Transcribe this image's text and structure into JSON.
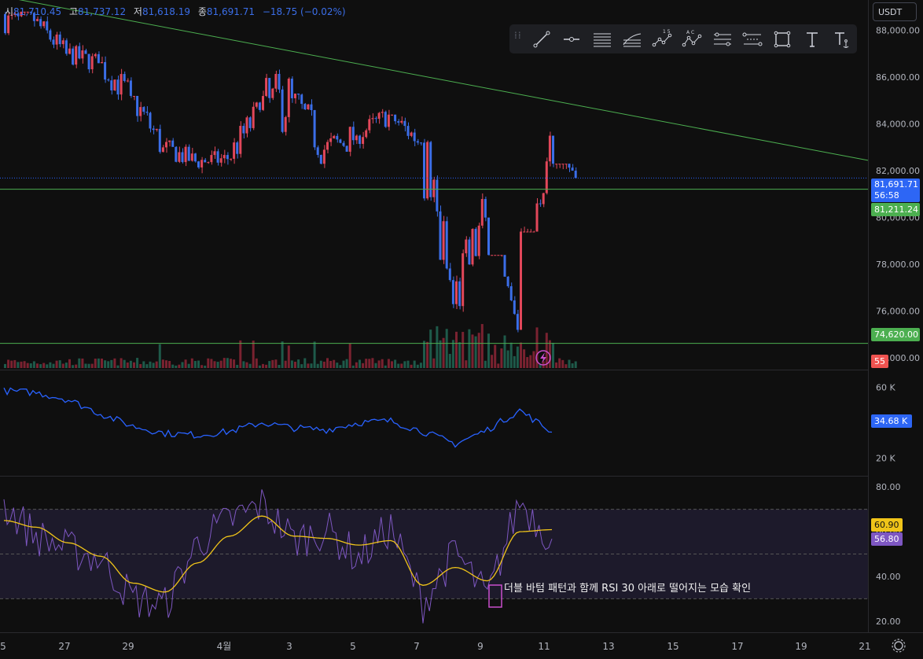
{
  "ohlc": {
    "open_label": "시",
    "open": "81,710.45",
    "high_label": "고",
    "high": "81,737.12",
    "low_label": "저",
    "low": "81,618.19",
    "close_label": "종",
    "close": "81,691.71",
    "change": "−18.75 (−0.02%)"
  },
  "currency": "USDT",
  "toolbar": {
    "tools": [
      "trend-line-icon",
      "horizontal-ray-icon",
      "parallel-channel-icon",
      "fib-retracement-icon",
      "elliott-wave-icon",
      "abcd-pattern-icon",
      "date-range-icon",
      "price-range-icon",
      "rectangle-icon",
      "text-icon",
      "anchored-text-icon"
    ],
    "elliott_label": "1 5",
    "abcd_label": "A C"
  },
  "price_axis": {
    "ticks": [
      "88,000.00",
      "86,000.00",
      "84,000.00",
      "82,000.00",
      "80,000.00",
      "78,000.00",
      "76,000.00",
      "74,000.00"
    ],
    "current_price": "81,691.71",
    "countdown": "56:58",
    "level_upper": "81,211.24",
    "level_lower": "74,620.00",
    "volume_badge": "55"
  },
  "obv_axis": {
    "ticks": [
      "60 K",
      "40 K",
      "20 K"
    ],
    "current": "34.68 K"
  },
  "rsi_axis": {
    "ticks": [
      "80.00",
      "60.00",
      "40.00",
      "20.00"
    ],
    "ma_value": "60.90",
    "rsi_value": "56.80"
  },
  "time_axis": {
    "ticks": [
      "5",
      "27",
      "29",
      "4월",
      "3",
      "5",
      "7",
      "9",
      "11",
      "13",
      "15",
      "17",
      "19",
      "21"
    ]
  },
  "annotation": "더블 바텀 패턴과 함께 RSI 30 아래로 떨어지는 모습 확인",
  "colors": {
    "background": "#0f0f0f",
    "up": "#e2475a",
    "down": "#3b6ee8",
    "trendline": "#4caf50",
    "obv": "#2962ff",
    "rsi": "#7e57c2",
    "rsi_ma": "#f0c419",
    "rsi_band": "#1d1a2b"
  },
  "chart_data": [
    {
      "type": "candlestick",
      "title": "",
      "y_unit": "USDT",
      "ylim": [
        73500,
        89300
      ],
      "x": [
        "3/25",
        "3/26",
        "3/27",
        "3/28",
        "3/29",
        "3/30",
        "3/31",
        "4/1",
        "4/2",
        "4/3",
        "4/4",
        "4/5",
        "4/6",
        "4/7",
        "4/8",
        "4/9",
        "4/10",
        "4/11"
      ],
      "close": [
        88400,
        87000,
        86600,
        85200,
        83000,
        82400,
        82500,
        84600,
        85100,
        82900,
        83500,
        84400,
        83200,
        76300,
        80000,
        75200,
        83500,
        81691.71
      ],
      "high": [
        88800,
        88600,
        87800,
        87400,
        85200,
        83400,
        83100,
        85400,
        88600,
        85300,
        84300,
        84700,
        84400,
        83800,
        81200,
        78400,
        83700,
        82300
      ],
      "low": [
        86500,
        86400,
        85800,
        84400,
        82100,
        81400,
        81300,
        82300,
        82300,
        81200,
        81300,
        82600,
        82100,
        74600,
        74700,
        74620,
        79400,
        81300
      ],
      "annotations": [
        {
          "label": "trendline",
          "from": [
            "3/25",
            89300
          ],
          "to": [
            "4/21",
            84800
          ]
        },
        {
          "label": "support",
          "value": 81211.24
        },
        {
          "label": "support",
          "value": 74620.0
        }
      ]
    },
    {
      "type": "line",
      "title": "",
      "ylim": [
        10,
        70
      ],
      "series": [
        {
          "values": [
            58,
            57,
            53,
            45,
            38,
            34,
            33,
            35,
            40,
            37,
            36,
            40,
            41,
            35,
            28,
            36,
            47,
            34.68
          ]
        }
      ]
    },
    {
      "type": "line",
      "title": "",
      "ylim": [
        15,
        85
      ],
      "bands": [
        30,
        50,
        70
      ],
      "series": [
        {
          "values": [
            72,
            58,
            52,
            48,
            30,
            27,
            55,
            65,
            72,
            56,
            61,
            48,
            62,
            28,
            51,
            30,
            74,
            56.8
          ]
        },
        {
          "values": [
            65,
            62,
            55,
            49,
            37,
            33,
            46,
            58,
            67,
            58,
            57,
            54,
            56,
            36,
            44,
            38,
            60,
            60.9
          ]
        }
      ]
    }
  ]
}
